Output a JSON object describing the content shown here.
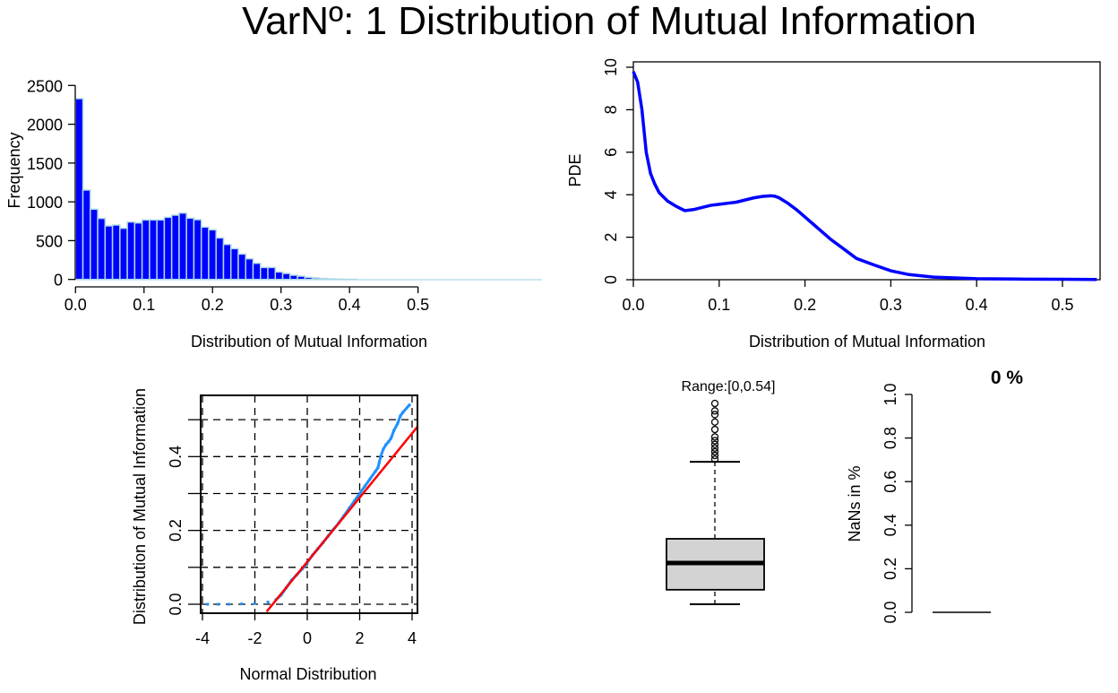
{
  "title": "VarNº: 1 Distribution of Mutual Information",
  "chart_data": [
    {
      "type": "bar",
      "ylabel": "Frequency",
      "xlabel": "Distribution of Mutual Information",
      "xlim": [
        0,
        0.54
      ],
      "ylim": [
        0,
        2500
      ],
      "x_ticks": [
        "0.0",
        "0.1",
        "0.2",
        "0.3",
        "0.4",
        "0.5"
      ],
      "y_ticks": [
        "0",
        "500",
        "1000",
        "1500",
        "2000",
        "2500"
      ],
      "bin_width": 0.0108,
      "values": [
        2330,
        1152,
        905,
        786,
        690,
        701,
        659,
        740,
        728,
        767,
        767,
        767,
        801,
        828,
        855,
        790,
        770,
        674,
        640,
        535,
        451,
        397,
        327,
        266,
        208,
        154,
        154,
        96,
        77,
        54,
        42,
        27,
        19,
        12,
        8,
        4,
        2,
        1
      ],
      "colors": {
        "fill": "#0000ff",
        "border": "#add8e6"
      }
    },
    {
      "type": "line",
      "ylabel": "PDE",
      "xlabel": "Distribution of Mutual Information",
      "xlim": [
        0,
        0.54
      ],
      "ylim": [
        0,
        10
      ],
      "x_ticks": [
        "0.0",
        "0.1",
        "0.2",
        "0.3",
        "0.4",
        "0.5"
      ],
      "y_ticks": [
        "0",
        "2",
        "4",
        "6",
        "8",
        "10"
      ],
      "x": [
        0,
        0.005,
        0.01,
        0.015,
        0.02,
        0.025,
        0.03,
        0.04,
        0.05,
        0.06,
        0.07,
        0.08,
        0.09,
        0.1,
        0.11,
        0.12,
        0.13,
        0.14,
        0.15,
        0.16,
        0.165,
        0.17,
        0.18,
        0.19,
        0.2,
        0.21,
        0.22,
        0.23,
        0.24,
        0.25,
        0.26,
        0.28,
        0.3,
        0.32,
        0.35,
        0.4,
        0.45,
        0.5,
        0.54
      ],
      "y": [
        9.8,
        9.3,
        8.0,
        6.0,
        5.0,
        4.5,
        4.1,
        3.7,
        3.45,
        3.25,
        3.3,
        3.4,
        3.5,
        3.55,
        3.6,
        3.65,
        3.75,
        3.85,
        3.92,
        3.95,
        3.93,
        3.85,
        3.6,
        3.3,
        2.95,
        2.6,
        2.25,
        1.9,
        1.6,
        1.3,
        1.0,
        0.7,
        0.42,
        0.25,
        0.12,
        0.05,
        0.03,
        0.02,
        0.01
      ],
      "color": "#0000ff"
    },
    {
      "type": "scatter",
      "ylabel": "Distribution of Mutual Information",
      "xlabel": "Normal Distribution",
      "xlim": [
        -4,
        4.2
      ],
      "ylim": [
        -0.03,
        0.57
      ],
      "x_ticks": [
        "-4",
        "-2",
        "0",
        "2",
        "4"
      ],
      "y_ticks": [
        "0.0",
        "0.2",
        "0.4"
      ],
      "grid": true,
      "points": [
        [
          -3.8,
          0
        ],
        [
          -3.4,
          0
        ],
        [
          -3,
          0
        ],
        [
          -2.5,
          0.001
        ],
        [
          -2,
          0.002
        ],
        [
          -1.5,
          0.006
        ],
        [
          -1.2,
          0.012
        ],
        [
          -1,
          0.025
        ],
        [
          -0.8,
          0.045
        ],
        [
          -0.6,
          0.065
        ],
        [
          -0.4,
          0.08
        ],
        [
          -0.2,
          0.095
        ],
        [
          0,
          0.113
        ],
        [
          0.2,
          0.133
        ],
        [
          0.4,
          0.15
        ],
        [
          0.6,
          0.167
        ],
        [
          0.8,
          0.185
        ],
        [
          1,
          0.203
        ],
        [
          1.2,
          0.22
        ],
        [
          1.4,
          0.24
        ],
        [
          1.6,
          0.26
        ],
        [
          1.8,
          0.28
        ],
        [
          2,
          0.3
        ],
        [
          2.2,
          0.32
        ],
        [
          2.4,
          0.34
        ],
        [
          2.6,
          0.36
        ],
        [
          2.7,
          0.37
        ],
        [
          2.75,
          0.385
        ],
        [
          2.8,
          0.4
        ],
        [
          2.9,
          0.42
        ],
        [
          3,
          0.432
        ],
        [
          3.1,
          0.44
        ],
        [
          3.2,
          0.45
        ],
        [
          3.3,
          0.47
        ],
        [
          3.45,
          0.49
        ],
        [
          3.55,
          0.51
        ],
        [
          3.65,
          0.52
        ],
        [
          3.9,
          0.54
        ]
      ],
      "reference_line": {
        "intercept": 0.115,
        "slope": 0.087,
        "color": "#ff0000"
      },
      "point_color": "#1e90ff"
    },
    {
      "type": "box",
      "annotation": "Range:[0,0.54]",
      "min": 0,
      "q1": 0.039,
      "median": 0.111,
      "q3": 0.176,
      "upper_whisker": 0.383,
      "outliers": [
        0.39,
        0.4,
        0.41,
        0.42,
        0.43,
        0.44,
        0.45,
        0.47,
        0.49,
        0.51,
        0.52,
        0.54
      ],
      "ylim": [
        0,
        0.54
      ],
      "fill": "#d3d3d3"
    },
    {
      "type": "bar",
      "ylabel": "NaNs in %",
      "annotation": "0 %",
      "values": [
        0
      ],
      "ylim": [
        0,
        1
      ],
      "y_ticks": [
        "0.0",
        "0.2",
        "0.4",
        "0.6",
        "0.8",
        "1.0"
      ]
    }
  ]
}
